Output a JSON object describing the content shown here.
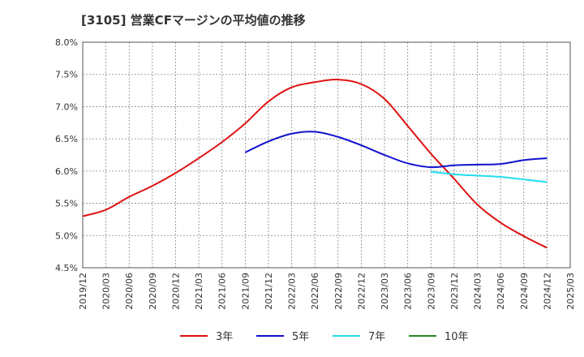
{
  "chart_data": {
    "type": "line",
    "title": "[3105]  営業CFマージンの平均値の推移",
    "xlabel": "",
    "ylabel": "",
    "ylim": [
      4.5,
      8.0
    ],
    "grid": true,
    "legend_position": "bottom",
    "y_ticks": [
      "8.0%",
      "7.5%",
      "7.0%",
      "6.5%",
      "6.0%",
      "5.5%",
      "5.0%",
      "4.5%"
    ],
    "x_ticks": [
      "2019/12",
      "2020/03",
      "2020/06",
      "2020/09",
      "2020/12",
      "2021/03",
      "2021/06",
      "2021/09",
      "2021/12",
      "2022/03",
      "2022/06",
      "2022/09",
      "2022/12",
      "2023/03",
      "2023/06",
      "2023/09",
      "2023/12",
      "2024/03",
      "2024/06",
      "2024/09",
      "2024/12",
      "2025/03"
    ],
    "series": [
      {
        "name": "3年",
        "color": "#dd1111",
        "points": [
          [
            "2019/12",
            5.3
          ],
          [
            "2020/03",
            5.4
          ],
          [
            "2020/06",
            5.6
          ],
          [
            "2020/09",
            5.77
          ],
          [
            "2020/12",
            5.97
          ],
          [
            "2021/03",
            6.2
          ],
          [
            "2021/06",
            6.45
          ],
          [
            "2021/09",
            6.74
          ],
          [
            "2021/12",
            7.08
          ],
          [
            "2022/03",
            7.3
          ],
          [
            "2022/06",
            7.38
          ],
          [
            "2022/09",
            7.42
          ],
          [
            "2022/12",
            7.35
          ],
          [
            "2023/03",
            7.12
          ],
          [
            "2023/06",
            6.7
          ],
          [
            "2023/09",
            6.27
          ],
          [
            "2023/12",
            5.88
          ],
          [
            "2024/03",
            5.48
          ],
          [
            "2024/06",
            5.2
          ],
          [
            "2024/09",
            4.99
          ],
          [
            "2024/12",
            4.81
          ]
        ]
      },
      {
        "name": "5年",
        "color": "#1111cc",
        "points": [
          [
            "2021/09",
            6.29
          ],
          [
            "2021/12",
            6.46
          ],
          [
            "2022/03",
            6.58
          ],
          [
            "2022/06",
            6.61
          ],
          [
            "2022/09",
            6.53
          ],
          [
            "2022/12",
            6.4
          ],
          [
            "2023/03",
            6.25
          ],
          [
            "2023/06",
            6.12
          ],
          [
            "2023/09",
            6.06
          ],
          [
            "2023/12",
            6.09
          ],
          [
            "2024/03",
            6.1
          ],
          [
            "2024/06",
            6.11
          ],
          [
            "2024/09",
            6.17
          ],
          [
            "2024/12",
            6.2
          ]
        ]
      },
      {
        "name": "7年",
        "color": "#22ddee",
        "points": [
          [
            "2023/09",
            5.99
          ],
          [
            "2023/12",
            5.95
          ],
          [
            "2024/03",
            5.93
          ],
          [
            "2024/06",
            5.91
          ],
          [
            "2024/09",
            5.87
          ],
          [
            "2024/12",
            5.83
          ]
        ]
      },
      {
        "name": "10年",
        "color": "#228822",
        "points": []
      }
    ]
  }
}
